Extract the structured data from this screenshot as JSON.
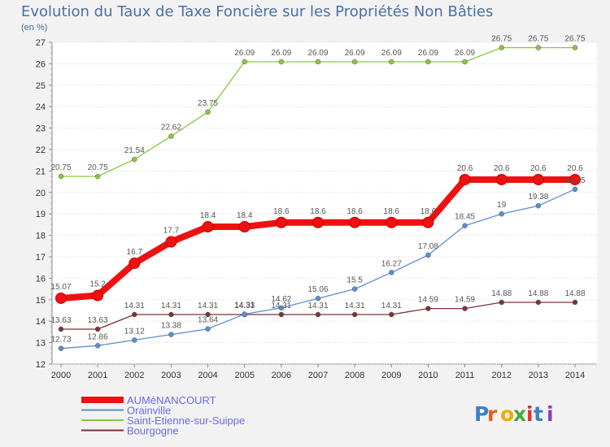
{
  "chart_data": {
    "type": "line",
    "title": "Evolution du Taux de Taxe Foncière sur les Propriétés Non Bâties",
    "unit_label": "(en %)",
    "xlabel": "",
    "ylabel": "",
    "ylim": [
      12,
      27
    ],
    "yticks": [
      12,
      13,
      14,
      15,
      16,
      17,
      18,
      19,
      20,
      21,
      22,
      23,
      24,
      25,
      26,
      27
    ],
    "categories": [
      "2000",
      "2001",
      "2002",
      "2003",
      "2004",
      "2005",
      "2006",
      "2007",
      "2008",
      "2009",
      "2010",
      "2011",
      "2012",
      "2013",
      "2014"
    ],
    "series": [
      {
        "name": "AUMéNANCOURT",
        "color": "#ee1111",
        "emphasis": true,
        "values": [
          15.07,
          15.2,
          16.7,
          17.7,
          18.4,
          18.4,
          18.6,
          18.6,
          18.6,
          18.6,
          18.6,
          20.6,
          20.6,
          20.6,
          20.6
        ],
        "labels": [
          "15.07",
          "15.2",
          "16.7",
          "17.7",
          "18.4",
          "18.4",
          "18.6",
          "18.6",
          "18.6",
          "18.6",
          "18.6",
          "20.6",
          "20.6",
          "20.6",
          "20.6"
        ]
      },
      {
        "name": "Orainville",
        "color": "#5b8fcf",
        "emphasis": false,
        "values": [
          12.73,
          12.86,
          13.12,
          13.38,
          13.64,
          14.33,
          14.62,
          15.06,
          15.5,
          16.27,
          17.08,
          18.45,
          19.0,
          19.38,
          20.15
        ],
        "labels": [
          "12.73",
          "12.86",
          "13.12",
          "13.38",
          "13.64",
          "14.33",
          "14.62",
          "15.06",
          "15.5",
          "16.27",
          "17.08",
          "18.45",
          "19",
          "19.38",
          "20.15"
        ]
      },
      {
        "name": "Saint-Etienne-sur-Suippe",
        "color": "#8cc63f",
        "emphasis": false,
        "values": [
          20.75,
          20.75,
          21.54,
          22.62,
          23.75,
          26.09,
          26.09,
          26.09,
          26.09,
          26.09,
          26.09,
          26.09,
          26.75,
          26.75,
          26.75
        ],
        "labels": [
          "20.75",
          "20.75",
          "21.54",
          "22.62",
          "23.75",
          "26.09",
          "26.09",
          "26.09",
          "26.09",
          "26.09",
          "26.09",
          "26.09",
          "26.75",
          "26.75",
          "26.75"
        ]
      },
      {
        "name": "Bourgogne",
        "color": "#7a3535",
        "emphasis": false,
        "values": [
          13.63,
          13.63,
          14.31,
          14.31,
          14.31,
          14.31,
          14.31,
          14.31,
          14.31,
          14.31,
          14.59,
          14.59,
          14.88,
          14.88,
          14.88
        ],
        "labels": [
          "13.63",
          "13.63",
          "14.31",
          "14.31",
          "14.31",
          "14.31",
          "14.31",
          "14.31",
          "14.31",
          "14.31",
          "14.59",
          "14.59",
          "14.88",
          "14.88",
          "14.88"
        ]
      }
    ],
    "legend": {
      "position": "bottom-left",
      "entries": [
        "AUMéNANCOURT",
        "Orainville",
        "Saint-Etienne-sur-Suippe",
        "Bourgogne"
      ]
    },
    "watermark": "Proxiti"
  }
}
